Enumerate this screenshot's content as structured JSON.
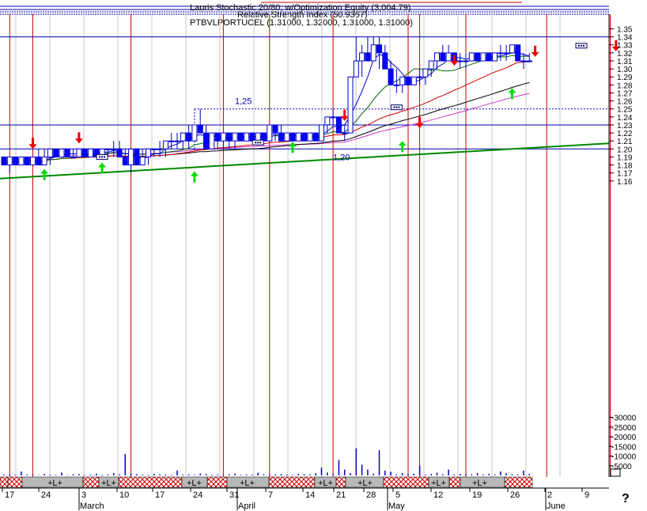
{
  "header": {
    "line1": "Lauris Stochastic 20/80, w/Optimization Equity (3,004.79)",
    "line2": "Relative Strength Index (50.9367)",
    "line3": "PTBVLPORTUCEL (1.31000, 1.32000, 1.31000, 1.31000)"
  },
  "help_glyph": "?",
  "chart_data": {
    "type": "candlestick",
    "symbol": "PTBVLPORTUCEL",
    "ohlc_current": {
      "open": 1.31,
      "high": 1.32,
      "low": 1.31,
      "close": 1.31
    },
    "ylim": [
      1.155,
      1.36
    ],
    "yticks": [
      1.16,
      1.17,
      1.18,
      1.19,
      1.2,
      1.21,
      1.22,
      1.23,
      1.24,
      1.25,
      1.26,
      1.27,
      1.28,
      1.29,
      1.3,
      1.31,
      1.32,
      1.33,
      1.34,
      1.35
    ],
    "ytick_labels": [
      "1.16",
      "1.17",
      "1.18",
      "1.19",
      "1.20",
      "1.21",
      "1.22",
      "1.23",
      "1.24",
      "1.25",
      "1.26",
      "1.27",
      "1.28",
      "1.29",
      "1.30",
      "1.31",
      "1.32",
      "1.33",
      "1.34",
      "1.35"
    ],
    "volume_ticks": [
      5000,
      10000,
      15000,
      20000,
      25000,
      30000
    ],
    "volume_tick_labels": [
      "5000",
      "10000",
      "15000",
      "20000",
      "25000",
      "30000"
    ],
    "x_day_labels": [
      "17",
      "24",
      "3",
      "10",
      "17",
      "24",
      "31",
      "7",
      "14",
      "21",
      "28",
      "5",
      "12",
      "19",
      "26",
      "2",
      "9"
    ],
    "x_month_labels": [
      "March",
      "April",
      "May",
      "June"
    ],
    "annotations": [
      {
        "text": "1,25",
        "price": 1.25
      },
      {
        "text": "1,20",
        "price": 1.2
      }
    ],
    "bars": [
      [
        1.19,
        1.19,
        1.18,
        1.18
      ],
      [
        1.18,
        1.19,
        1.17,
        1.19
      ],
      [
        1.19,
        1.19,
        1.18,
        1.18
      ],
      [
        1.18,
        1.19,
        1.18,
        1.19
      ],
      [
        1.19,
        1.19,
        1.18,
        1.18
      ],
      [
        1.18,
        1.19,
        1.18,
        1.19
      ],
      [
        1.19,
        1.2,
        1.18,
        1.18
      ],
      [
        1.18,
        1.2,
        1.18,
        1.19
      ],
      [
        1.19,
        1.2,
        1.18,
        1.2
      ],
      [
        1.2,
        1.2,
        1.19,
        1.19
      ],
      [
        1.19,
        1.2,
        1.19,
        1.2
      ],
      [
        1.2,
        1.2,
        1.19,
        1.19
      ],
      [
        1.19,
        1.2,
        1.19,
        1.19
      ],
      [
        1.19,
        1.2,
        1.19,
        1.2
      ],
      [
        1.2,
        1.2,
        1.19,
        1.19
      ],
      [
        1.19,
        1.2,
        1.19,
        1.2
      ],
      [
        1.2,
        1.2,
        1.19,
        1.19
      ],
      [
        1.19,
        1.2,
        1.19,
        1.2
      ],
      [
        1.2,
        1.2,
        1.19,
        1.2
      ],
      [
        1.2,
        1.21,
        1.19,
        1.2
      ],
      [
        1.2,
        1.21,
        1.19,
        1.19
      ],
      [
        1.19,
        1.2,
        1.18,
        1.18
      ],
      [
        1.18,
        1.2,
        1.17,
        1.2
      ],
      [
        1.2,
        1.2,
        1.18,
        1.18
      ],
      [
        1.18,
        1.2,
        1.18,
        1.19
      ],
      [
        1.19,
        1.2,
        1.18,
        1.2
      ],
      [
        1.2,
        1.2,
        1.19,
        1.2
      ],
      [
        1.2,
        1.21,
        1.19,
        1.2
      ],
      [
        1.2,
        1.21,
        1.19,
        1.21
      ],
      [
        1.21,
        1.22,
        1.2,
        1.21
      ],
      [
        1.21,
        1.22,
        1.2,
        1.21
      ],
      [
        1.21,
        1.22,
        1.2,
        1.22
      ],
      [
        1.22,
        1.23,
        1.2,
        1.21
      ],
      [
        1.21,
        1.23,
        1.21,
        1.23
      ],
      [
        1.23,
        1.25,
        1.22,
        1.22
      ],
      [
        1.22,
        1.23,
        1.2,
        1.2
      ],
      [
        1.2,
        1.22,
        1.2,
        1.22
      ],
      [
        1.22,
        1.22,
        1.2,
        1.21
      ],
      [
        1.21,
        1.22,
        1.2,
        1.22
      ],
      [
        1.22,
        1.22,
        1.2,
        1.21
      ],
      [
        1.21,
        1.22,
        1.2,
        1.22
      ],
      [
        1.22,
        1.22,
        1.21,
        1.21
      ],
      [
        1.21,
        1.22,
        1.21,
        1.22
      ],
      [
        1.22,
        1.22,
        1.21,
        1.21
      ],
      [
        1.21,
        1.22,
        1.21,
        1.22
      ],
      [
        1.22,
        1.22,
        1.21,
        1.21
      ],
      [
        1.21,
        1.23,
        1.21,
        1.23
      ],
      [
        1.23,
        1.23,
        1.21,
        1.22
      ],
      [
        1.22,
        1.23,
        1.21,
        1.21
      ],
      [
        1.21,
        1.22,
        1.21,
        1.22
      ],
      [
        1.22,
        1.22,
        1.21,
        1.21
      ],
      [
        1.21,
        1.22,
        1.21,
        1.22
      ],
      [
        1.22,
        1.22,
        1.21,
        1.21
      ],
      [
        1.21,
        1.22,
        1.21,
        1.22
      ],
      [
        1.22,
        1.22,
        1.21,
        1.21
      ],
      [
        1.21,
        1.23,
        1.21,
        1.23
      ],
      [
        1.23,
        1.24,
        1.22,
        1.24
      ],
      [
        1.24,
        1.25,
        1.23,
        1.24
      ],
      [
        1.24,
        1.24,
        1.22,
        1.22
      ],
      [
        1.22,
        1.23,
        1.21,
        1.22
      ],
      [
        1.22,
        1.29,
        1.22,
        1.29
      ],
      [
        1.29,
        1.34,
        1.29,
        1.31
      ],
      [
        1.31,
        1.33,
        1.29,
        1.32
      ],
      [
        1.32,
        1.34,
        1.31,
        1.31
      ],
      [
        1.31,
        1.34,
        1.31,
        1.33
      ],
      [
        1.33,
        1.34,
        1.3,
        1.32
      ],
      [
        1.32,
        1.33,
        1.3,
        1.3
      ],
      [
        1.3,
        1.31,
        1.28,
        1.28
      ],
      [
        1.28,
        1.3,
        1.27,
        1.28
      ],
      [
        1.28,
        1.29,
        1.27,
        1.29
      ],
      [
        1.29,
        1.29,
        1.28,
        1.28
      ],
      [
        1.28,
        1.29,
        1.28,
        1.29
      ],
      [
        1.29,
        1.3,
        1.28,
        1.29
      ],
      [
        1.29,
        1.3,
        1.28,
        1.3
      ],
      [
        1.3,
        1.31,
        1.29,
        1.31
      ],
      [
        1.31,
        1.32,
        1.3,
        1.32
      ],
      [
        1.32,
        1.33,
        1.31,
        1.31
      ],
      [
        1.31,
        1.33,
        1.31,
        1.32
      ],
      [
        1.32,
        1.32,
        1.31,
        1.31
      ],
      [
        1.31,
        1.32,
        1.3,
        1.31
      ],
      [
        1.31,
        1.32,
        1.3,
        1.31
      ],
      [
        1.31,
        1.32,
        1.31,
        1.32
      ],
      [
        1.32,
        1.32,
        1.31,
        1.31
      ],
      [
        1.31,
        1.32,
        1.31,
        1.32
      ],
      [
        1.32,
        1.32,
        1.31,
        1.31
      ],
      [
        1.31,
        1.32,
        1.31,
        1.32
      ],
      [
        1.32,
        1.33,
        1.31,
        1.32
      ],
      [
        1.32,
        1.33,
        1.31,
        1.32
      ],
      [
        1.32,
        1.33,
        1.32,
        1.33
      ],
      [
        1.33,
        1.33,
        1.31,
        1.31
      ],
      [
        1.31,
        1.32,
        1.3,
        1.31
      ],
      [
        1.31,
        1.32,
        1.31,
        1.31
      ]
    ],
    "volumes": [
      400,
      600,
      300,
      2000,
      500,
      300,
      200,
      800,
      400,
      300,
      1500,
      200,
      600,
      700,
      300,
      400,
      900,
      300,
      500,
      1200,
      600,
      11000,
      900,
      700,
      400,
      300,
      800,
      600,
      500,
      300,
      2500,
      400,
      600,
      300,
      1000,
      700,
      300,
      400,
      200,
      600,
      900,
      300,
      500,
      400,
      1400,
      600,
      300,
      500,
      700,
      400,
      300,
      800,
      600,
      500,
      1200,
      4000,
      1500,
      700,
      8000,
      3000,
      1200,
      14000,
      5500,
      3000,
      900,
      13000,
      2500,
      1800,
      600,
      1200,
      800,
      900,
      5000,
      400,
      700,
      1400,
      600,
      3000,
      500,
      800,
      700,
      600,
      1200,
      500,
      800,
      400,
      2000,
      1100,
      600,
      500,
      2500,
      800
    ],
    "signals": [
      {
        "type": "sell",
        "bar": 5,
        "price": 1.2
      },
      {
        "type": "buy",
        "bar": 7,
        "price": 1.175
      },
      {
        "type": "sell",
        "bar": 13,
        "price": 1.207
      },
      {
        "type": "buy",
        "bar": 17,
        "price": 1.183
      },
      {
        "type": "buy",
        "bar": 33,
        "price": 1.172
      },
      {
        "type": "buy",
        "bar": 50,
        "price": 1.209
      },
      {
        "type": "sell",
        "bar": 59,
        "price": 1.235
      },
      {
        "type": "buy",
        "bar": 69,
        "price": 1.21
      },
      {
        "type": "sell",
        "bar": 72,
        "price": 1.226
      },
      {
        "type": "sell",
        "bar": 78,
        "price": 1.304
      },
      {
        "type": "buy",
        "bar": 88,
        "price": 1.276
      },
      {
        "type": "sell",
        "bar": 92,
        "price": 1.315
      },
      {
        "type": "sell",
        "bar": 106,
        "price": 1.322
      }
    ],
    "exit_markers": [
      {
        "bar": 17,
        "price": 1.19
      },
      {
        "bar": 44,
        "price": 1.208
      },
      {
        "bar": 68,
        "price": 1.252
      },
      {
        "bar": 100,
        "price": 1.329
      }
    ],
    "h_lines": [
      1.34,
      1.23,
      1.2
    ],
    "dashed_level": 1.25,
    "trendline": {
      "from_price": 1.163,
      "to_price": 1.207
    },
    "vertical_signal_lines_bars": [
      1,
      5,
      22,
      38,
      46,
      57,
      70,
      72,
      80,
      94,
      105
    ],
    "band_labels": [
      "+L+",
      "+L+",
      "+L+",
      "+L+",
      "+L+",
      "+L+",
      "+L+",
      "+L+"
    ]
  }
}
